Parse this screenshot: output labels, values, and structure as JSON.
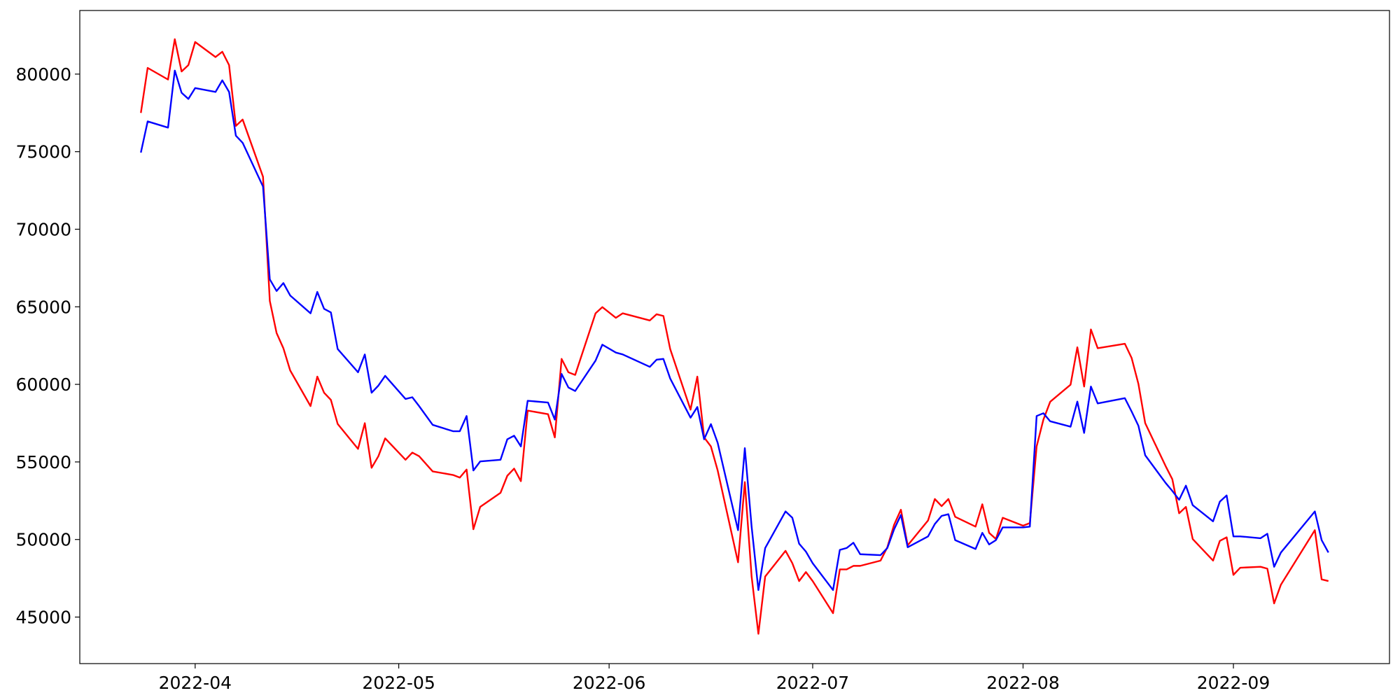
{
  "chart_data": {
    "type": "line",
    "x": [
      "2022-03-24",
      "2022-03-25",
      "2022-03-28",
      "2022-03-29",
      "2022-03-30",
      "2022-03-31",
      "2022-04-01",
      "2022-04-04",
      "2022-04-05",
      "2022-04-06",
      "2022-04-07",
      "2022-04-08",
      "2022-04-11",
      "2022-04-12",
      "2022-04-13",
      "2022-04-14",
      "2022-04-15",
      "2022-04-18",
      "2022-04-19",
      "2022-04-20",
      "2022-04-21",
      "2022-04-22",
      "2022-04-25",
      "2022-04-26",
      "2022-04-27",
      "2022-04-28",
      "2022-04-29",
      "2022-05-02",
      "2022-05-03",
      "2022-05-04",
      "2022-05-06",
      "2022-05-09",
      "2022-05-10",
      "2022-05-11",
      "2022-05-12",
      "2022-05-13",
      "2022-05-16",
      "2022-05-17",
      "2022-05-18",
      "2022-05-19",
      "2022-05-20",
      "2022-05-23",
      "2022-05-24",
      "2022-05-25",
      "2022-05-26",
      "2022-05-27",
      "2022-05-30",
      "2022-05-31",
      "2022-06-02",
      "2022-06-03",
      "2022-06-07",
      "2022-06-08",
      "2022-06-09",
      "2022-06-10",
      "2022-06-13",
      "2022-06-14",
      "2022-06-15",
      "2022-06-16",
      "2022-06-17",
      "2022-06-20",
      "2022-06-21",
      "2022-06-22",
      "2022-06-23",
      "2022-06-24",
      "2022-06-27",
      "2022-06-28",
      "2022-06-29",
      "2022-06-30",
      "2022-07-01",
      "2022-07-04",
      "2022-07-05",
      "2022-07-06",
      "2022-07-07",
      "2022-07-08",
      "2022-07-11",
      "2022-07-12",
      "2022-07-13",
      "2022-07-14",
      "2022-07-15",
      "2022-07-18",
      "2022-07-19",
      "2022-07-20",
      "2022-07-21",
      "2022-07-22",
      "2022-07-25",
      "2022-07-26",
      "2022-07-27",
      "2022-07-28",
      "2022-07-29",
      "2022-08-01",
      "2022-08-02",
      "2022-08-03",
      "2022-08-04",
      "2022-08-05",
      "2022-08-08",
      "2022-08-09",
      "2022-08-10",
      "2022-08-11",
      "2022-08-12",
      "2022-08-16",
      "2022-08-17",
      "2022-08-18",
      "2022-08-19",
      "2022-08-22",
      "2022-08-23",
      "2022-08-24",
      "2022-08-25",
      "2022-08-26",
      "2022-08-29",
      "2022-08-30",
      "2022-08-31",
      "2022-09-01",
      "2022-09-02",
      "2022-09-05",
      "2022-09-06",
      "2022-09-07",
      "2022-09-08",
      "2022-09-13",
      "2022-09-14",
      "2022-09-15"
    ],
    "series": [
      {
        "color": "#ff0000",
        "values": [
          77500,
          80400,
          79650,
          82250,
          80170,
          80580,
          82070,
          81100,
          81440,
          80580,
          76660,
          77070,
          73380,
          65380,
          63310,
          62330,
          60900,
          58600,
          60500,
          59460,
          59000,
          57450,
          55840,
          57500,
          54620,
          55370,
          56520,
          55140,
          55600,
          55370,
          54390,
          54160,
          53990,
          54510,
          50660,
          52100,
          53010,
          54110,
          54570,
          53760,
          58310,
          58080,
          56580,
          61640,
          60780,
          60610,
          64580,
          64980,
          64290,
          64580,
          64120,
          64520,
          64410,
          62280,
          58370,
          60500,
          56580,
          56000,
          54450,
          48530,
          53700,
          47610,
          43920,
          47610,
          49270,
          48470,
          47320,
          47900,
          47320,
          45250,
          48070,
          48070,
          48300,
          48300,
          48640,
          49500,
          50950,
          51920,
          49620,
          51230,
          52610,
          52150,
          52610,
          51460,
          50830,
          52270,
          50430,
          50030,
          51400,
          50890,
          51060,
          56000,
          57730,
          58880,
          59980,
          62390,
          59860,
          63540,
          62330,
          62620,
          61700,
          60030,
          57500,
          54740,
          53880,
          51690,
          52100,
          50030,
          48640,
          49910,
          50140,
          47720,
          48180,
          48240,
          48120,
          45880,
          47090,
          50600,
          47430,
          47320
        ]
      },
      {
        "color": "#0000ff",
        "values": [
          74940,
          76950,
          76550,
          80230,
          78800,
          78400,
          79100,
          78850,
          79600,
          78850,
          76030,
          75570,
          72750,
          66770,
          66020,
          66530,
          65730,
          64580,
          65960,
          64870,
          64640,
          62280,
          60780,
          61930,
          59460,
          59920,
          60550,
          59060,
          59170,
          58600,
          57390,
          56980,
          56980,
          57960,
          54450,
          55030,
          55140,
          56460,
          56690,
          56000,
          58940,
          58830,
          57730,
          60670,
          59800,
          59570,
          61530,
          62560,
          62050,
          61930,
          61130,
          61590,
          61640,
          60380,
          57850,
          58540,
          56460,
          57440,
          56230,
          50600,
          55890,
          50830,
          46740,
          49450,
          51810,
          51400,
          49730,
          49220,
          48470,
          46740,
          49330,
          49450,
          49790,
          49050,
          48990,
          49450,
          50660,
          51580,
          49500,
          50200,
          51000,
          51520,
          51630,
          49960,
          49390,
          50430,
          49680,
          49960,
          50780,
          50780,
          50830,
          57960,
          58140,
          57620,
          57270,
          58890,
          56870,
          59860,
          58770,
          59110,
          58250,
          57330,
          55430,
          53650,
          53130,
          52560,
          53470,
          52210,
          51170,
          52440,
          52840,
          50200,
          50200,
          50080,
          50370,
          48240,
          49160,
          51810,
          49960,
          49160
        ]
      }
    ],
    "xlim": [
      "2022-03-15",
      "2022-09-24"
    ],
    "xticks": [
      {
        "value": "2022-04-01",
        "label": "2022-04"
      },
      {
        "value": "2022-05-01",
        "label": "2022-05"
      },
      {
        "value": "2022-06-01",
        "label": "2022-06"
      },
      {
        "value": "2022-07-01",
        "label": "2022-07"
      },
      {
        "value": "2022-08-01",
        "label": "2022-08"
      },
      {
        "value": "2022-09-01",
        "label": "2022-09"
      }
    ],
    "ylim": [
      42000,
      84100
    ],
    "yticks": [
      45000,
      50000,
      55000,
      60000,
      65000,
      70000,
      75000,
      80000
    ],
    "grid": false
  }
}
